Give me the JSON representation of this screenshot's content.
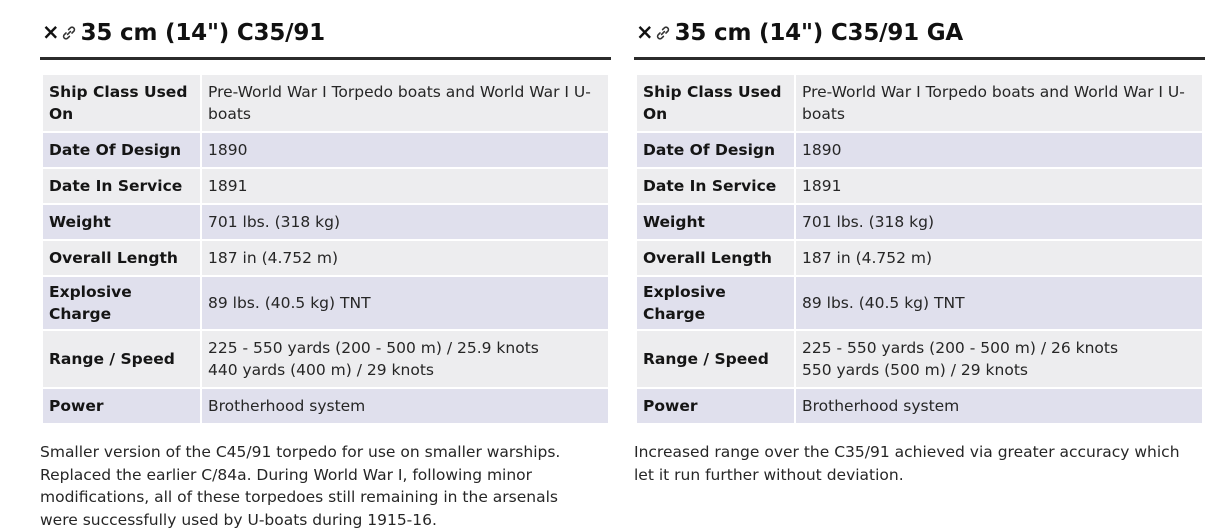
{
  "labels": {
    "ship_class": "Ship Class Used On",
    "date_design": "Date Of Design",
    "date_service": "Date In Service",
    "weight": "Weight",
    "length": "Overall Length",
    "charge": "Explosive Charge",
    "range_speed": "Range / Speed",
    "power": "Power"
  },
  "close_glyph": "×",
  "icons": [
    "close-icon",
    "link-icon"
  ],
  "colors": {
    "row_odd": "#ededef",
    "row_even": "#e0e0ed",
    "header_rule": "#2b2b2b"
  },
  "panels": [
    {
      "title": "35 cm (14\") C35/91",
      "ship_class": "Pre-World War I Torpedo boats and World War I U-boats",
      "date_design": "1890",
      "date_service": "1891",
      "weight": "701 lbs. (318 kg)",
      "length": "187 in (4.752 m)",
      "charge": "89 lbs. (40.5 kg) TNT",
      "range_speed": [
        "225 - 550 yards (200 - 500 m) / 25.9 knots",
        "440 yards (400 m) / 29 knots"
      ],
      "power": "Brotherhood system",
      "description": "Smaller version of the C45/91 torpedo for use on smaller warships. Replaced the earlier C/84a. During World War I, following minor modifications, all of these torpedoes still remaining in the arsenals were successfully used by U-boats during 1915-16."
    },
    {
      "title": "35 cm (14\") C35/91 GA",
      "ship_class": "Pre-World War I Torpedo boats and World War I U-boats",
      "date_design": "1890",
      "date_service": "1891",
      "weight": "701 lbs. (318 kg)",
      "length": "187 in (4.752 m)",
      "charge": "89 lbs. (40.5 kg) TNT",
      "range_speed": [
        "225 - 550 yards (200 - 500 m) / 26 knots",
        "550 yards (500 m) / 29 knots"
      ],
      "power": "Brotherhood system",
      "description": "Increased range over the C35/91 achieved via greater accuracy which let it run further without deviation."
    }
  ]
}
